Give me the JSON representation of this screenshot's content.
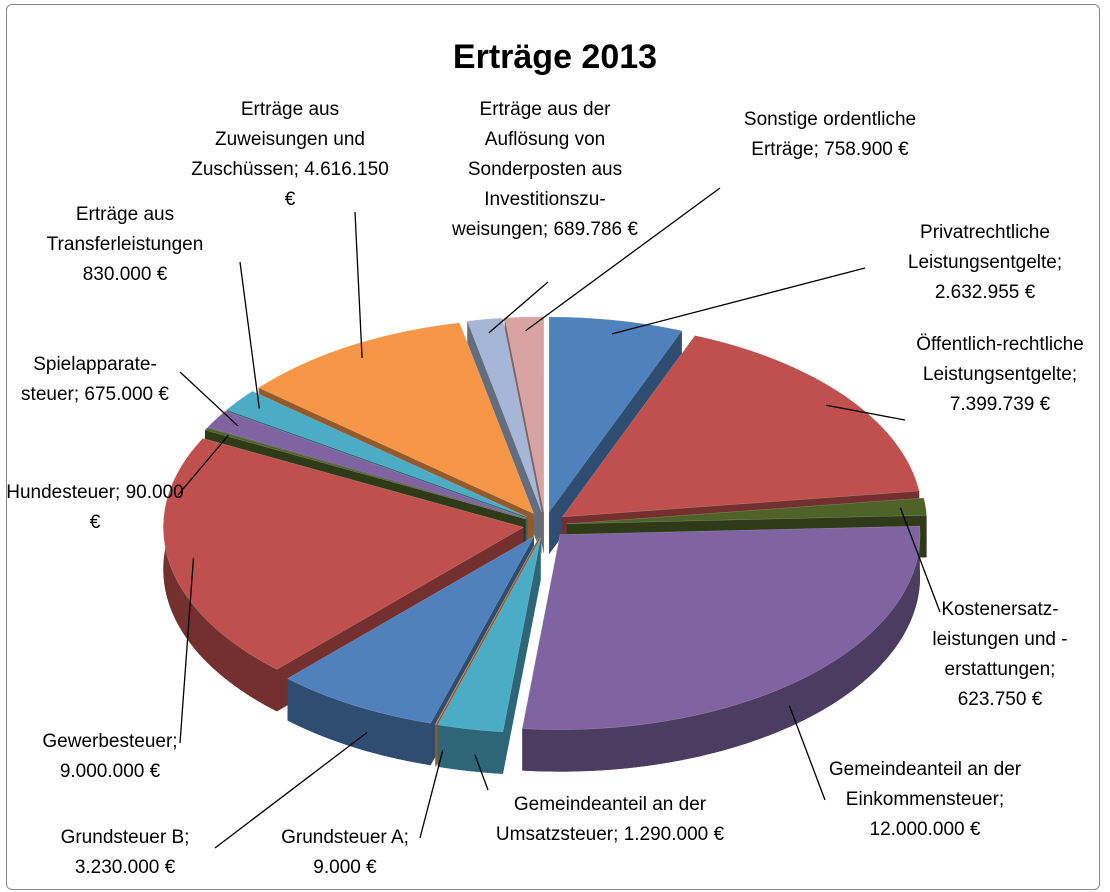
{
  "chart_data": {
    "type": "pie",
    "title": "Erträge 2013",
    "categories": [
      "Privatrechtliche Leistungsentgelte;",
      "Öffentlich-rechtliche Leistungsentgelte;",
      "Kostenersatz-leistungen und -erstattungen;",
      "Gemeindeanteil an der Einkommensteuer;",
      "Gemeindeanteil an der Umsatzsteuer;",
      "Grundsteuer A;",
      "Grundsteuer B;",
      "Gewerbesteuer;",
      "Hundesteuer;",
      "Spielapparate-steuer;",
      "Erträge aus Transferleistungen",
      "Erträge aus Zuweisungen und Zuschüssen;",
      "Erträge aus der Auflösung von Sonderposten aus Investitionszu-weisungen;",
      "Sonstige ordentliche Erträge;"
    ],
    "values": [
      2632955,
      7399739,
      623750,
      12000000,
      1290000,
      9000,
      3230000,
      9000000,
      90000,
      675000,
      830000,
      4616150,
      689786,
      758900
    ],
    "value_labels": [
      "2.632.955 €",
      "7.399.739 €",
      "623.750 €",
      "12.000.000 €",
      "1.290.000 €",
      "9.000 €",
      "3.230.000 €",
      "9.000.000 €",
      "90.000 €",
      "675.000 €",
      "830.000 €",
      "4.616.150 €",
      "689.786 €",
      "758.900 €"
    ],
    "colors": [
      "#4f81bd",
      "#c0504d",
      "#4f6228",
      "#8064a2",
      "#4bacc6",
      "#f79646",
      "#4f81bd",
      "#c0504d",
      "#4f6228",
      "#8064a2",
      "#4bacc6",
      "#f79646",
      "#a5b6d6",
      "#d9a3a3"
    ]
  }
}
